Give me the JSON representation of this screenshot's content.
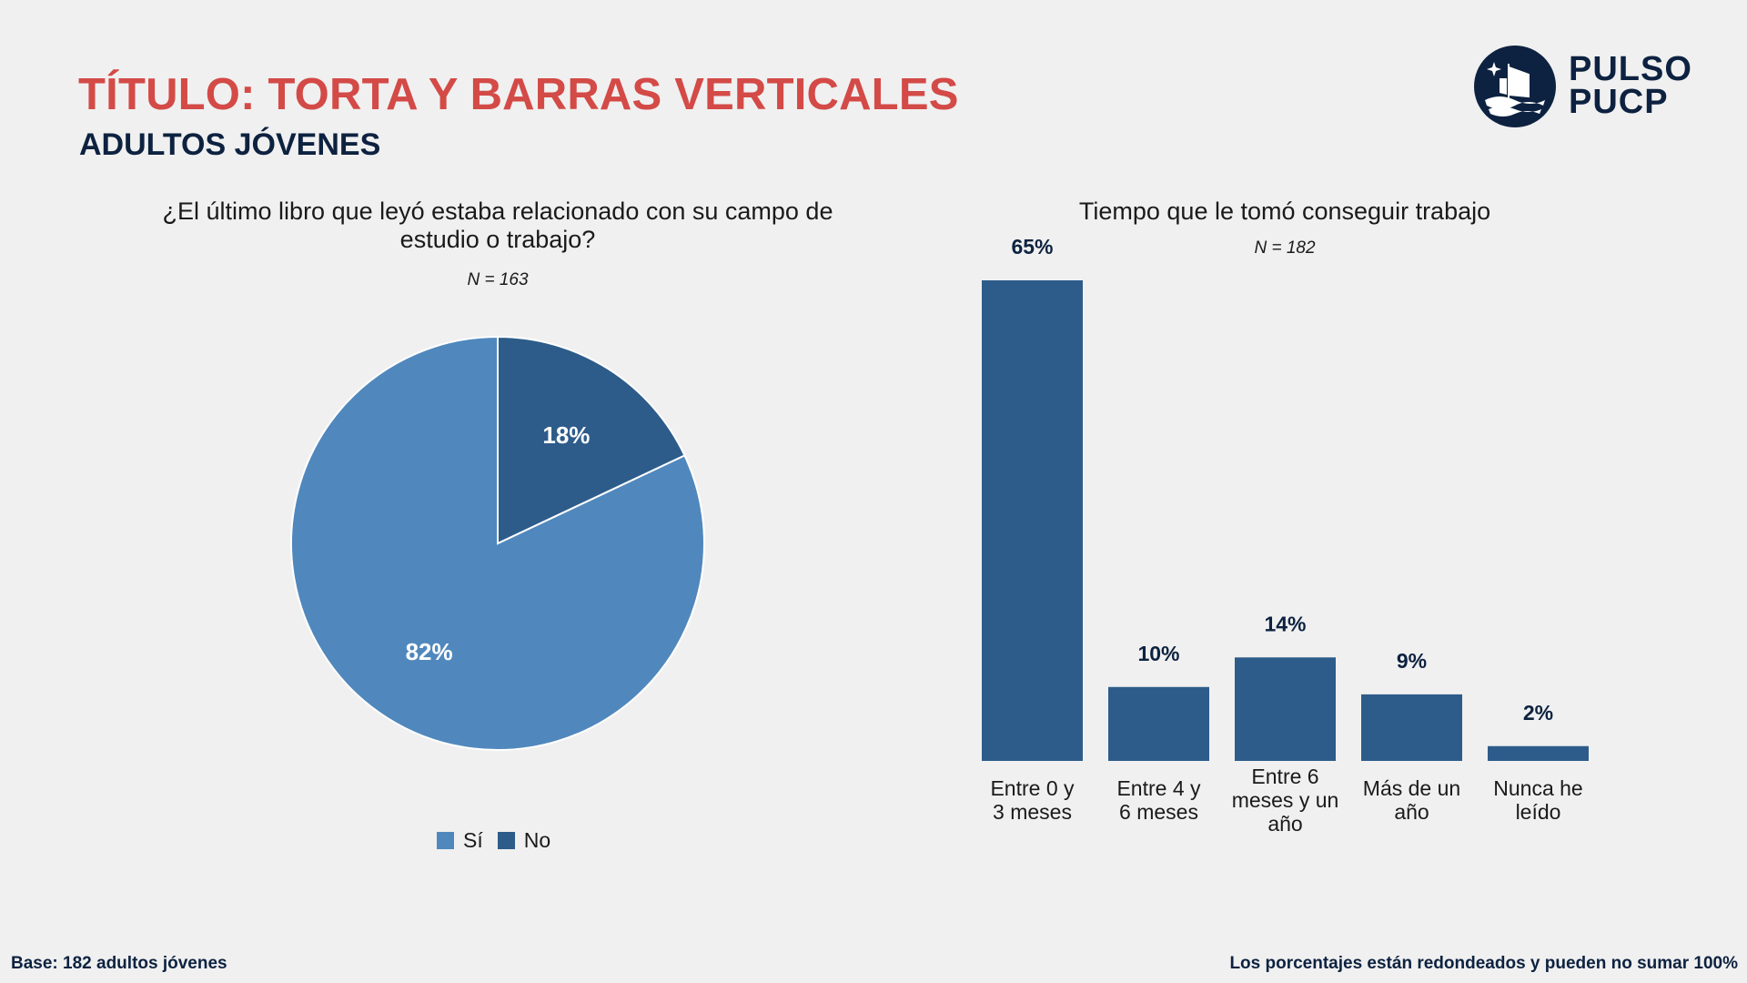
{
  "header": {
    "title": "TÍTULO: TORTA Y BARRAS VERTICALES",
    "subtitle": "ADULTOS JÓVENES",
    "logo_line1": "PULSO",
    "logo_line2": "PUCP"
  },
  "colors": {
    "title": "#d34a47",
    "navy": "#0d2240",
    "pie_si": "#5088bd",
    "pie_no": "#2d5c8a",
    "bar": "#2d5c8a"
  },
  "chart_data": [
    {
      "type": "pie",
      "title": "¿El último libro que leyó estaba relacionado con su campo de estudio o trabajo?",
      "title_lines": [
        "¿El último libro que leyó estaba relacionado con su campo de",
        "estudio o trabajo?"
      ],
      "n_label": "N = 163",
      "labels": [
        "Sí",
        "No"
      ],
      "values": [
        82,
        18
      ],
      "value_labels": [
        "82%",
        "18%"
      ],
      "colors": [
        "#5088bd",
        "#2d5c8a"
      ],
      "legend": "bottom"
    },
    {
      "type": "bar",
      "title": "Tiempo que le tomó conseguir trabajo",
      "n_label": "N = 182",
      "categories": [
        "Entre 0 y 3 meses",
        "Entre 4 y 6 meses",
        "Entre 6 meses y un año",
        "Más de un año",
        "Nunca he leído"
      ],
      "category_lines": [
        [
          "Entre 0 y",
          "3 meses"
        ],
        [
          "Entre 4 y",
          "6 meses"
        ],
        [
          "Entre 6",
          "meses y un",
          "año"
        ],
        [
          "Más de un",
          "año"
        ],
        [
          "Nunca he",
          "leído"
        ]
      ],
      "values": [
        65,
        10,
        14,
        9,
        2
      ],
      "value_labels": [
        "65%",
        "10%",
        "14%",
        "9%",
        "2%"
      ],
      "color": "#2d5c8a",
      "grid": false
    }
  ],
  "footer": {
    "base": "Base: 182 adultos jóvenes",
    "note": "Los porcentajes están redondeados y pueden no sumar 100%"
  }
}
